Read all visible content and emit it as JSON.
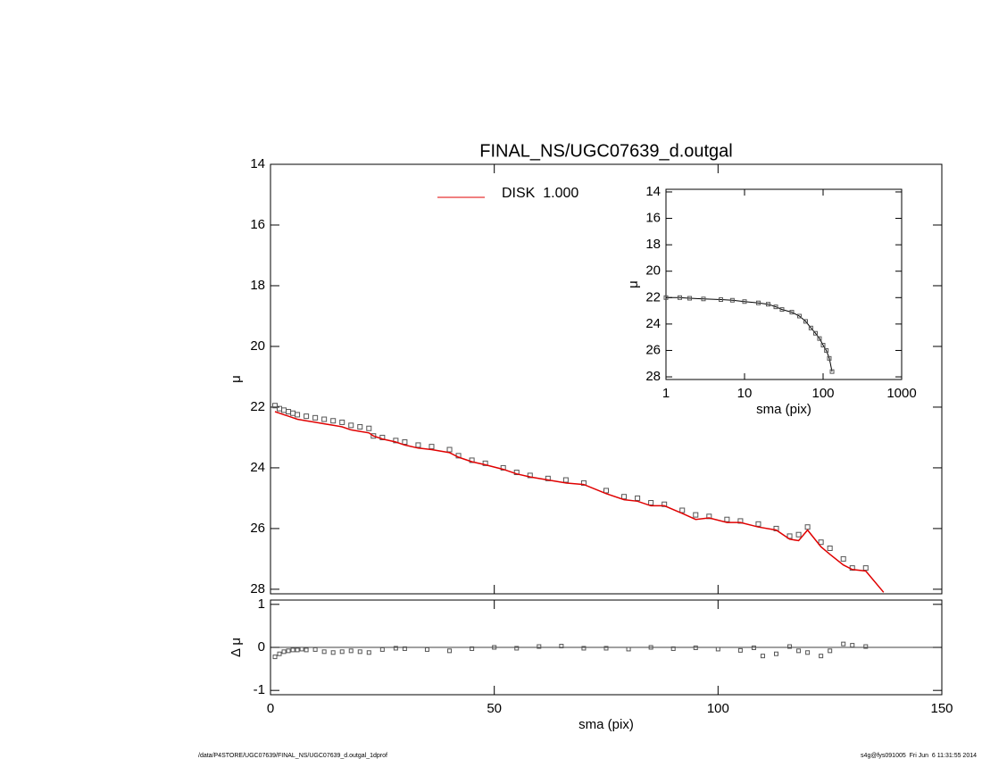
{
  "chart_data": [
    {
      "type": "line",
      "title": "FINAL_NS/UGC07639_d.outgal",
      "ylabel": "μ",
      "x": [
        1,
        2,
        3,
        4,
        5,
        6,
        8,
        10,
        12,
        14,
        16,
        18,
        20,
        22,
        23,
        25,
        28,
        30,
        33,
        36,
        40,
        42,
        45,
        48,
        52,
        55,
        58,
        62,
        66,
        70,
        75,
        79,
        82,
        85,
        88,
        92,
        95,
        98,
        102,
        105,
        109,
        113,
        116,
        118,
        120,
        123,
        125,
        128,
        130,
        133,
        137
      ],
      "series": [
        {
          "color": "#555555",
          "marker": "square",
          "values": [
            21.95,
            22.05,
            22.1,
            22.15,
            22.2,
            22.25,
            22.3,
            22.35,
            22.4,
            22.45,
            22.5,
            22.6,
            22.65,
            22.7,
            22.95,
            23.0,
            23.1,
            23.15,
            23.25,
            23.3,
            23.4,
            23.6,
            23.75,
            23.85,
            24.0,
            24.15,
            24.25,
            24.35,
            24.4,
            24.5,
            24.75,
            24.95,
            25.0,
            25.15,
            25.2,
            25.4,
            25.55,
            25.6,
            25.7,
            25.75,
            25.85,
            26.0,
            26.25,
            26.2,
            25.95,
            26.45,
            26.65,
            27.0,
            27.3,
            27.3,
            null
          ]
        },
        {
          "name": "DISK  1.000",
          "color": "#e00000",
          "values": [
            22.15,
            22.2,
            22.25,
            22.3,
            22.35,
            22.4,
            22.45,
            22.5,
            22.55,
            22.6,
            22.65,
            22.75,
            22.8,
            22.85,
            22.95,
            23.05,
            23.15,
            23.25,
            23.35,
            23.4,
            23.5,
            23.65,
            23.8,
            23.9,
            24.05,
            24.2,
            24.3,
            24.4,
            24.5,
            24.55,
            24.85,
            25.05,
            25.1,
            25.25,
            25.25,
            25.5,
            25.7,
            25.65,
            25.8,
            25.8,
            25.95,
            26.05,
            26.35,
            26.4,
            26.05,
            26.6,
            26.85,
            27.2,
            27.35,
            27.4,
            28.1
          ]
        }
      ],
      "xlim": [
        0,
        150
      ],
      "xticks": [
        0,
        50,
        100,
        150
      ],
      "xtick_labels": false,
      "ylim": [
        28.15,
        14
      ],
      "yticks": [
        14,
        16,
        18,
        20,
        22,
        24,
        26,
        28
      ],
      "legend": "upper left"
    },
    {
      "type": "scatter",
      "xlabel": "sma (pix)",
      "ylabel": "Δ μ",
      "x": [
        1,
        2,
        3,
        4,
        5,
        6,
        7,
        8,
        10,
        12,
        14,
        16,
        18,
        20,
        22,
        25,
        28,
        30,
        35,
        40,
        45,
        50,
        55,
        60,
        65,
        70,
        75,
        80,
        85,
        90,
        95,
        100,
        105,
        108,
        110,
        113,
        116,
        118,
        120,
        123,
        125,
        128,
        130,
        133
      ],
      "values": [
        -0.22,
        -0.15,
        -0.1,
        -0.08,
        -0.06,
        -0.06,
        -0.04,
        -0.06,
        -0.05,
        -0.1,
        -0.12,
        -0.1,
        -0.08,
        -0.1,
        -0.12,
        -0.05,
        -0.02,
        -0.03,
        -0.05,
        -0.08,
        -0.03,
        0.0,
        -0.02,
        0.02,
        0.03,
        -0.02,
        -0.02,
        -0.04,
        0.0,
        -0.03,
        -0.01,
        -0.04,
        -0.07,
        -0.01,
        -0.2,
        -0.15,
        0.02,
        -0.08,
        -0.12,
        -0.2,
        -0.08,
        0.08,
        0.05,
        0.02
      ],
      "color": "#555555",
      "xlim": [
        0,
        150
      ],
      "xticks": [
        0,
        50,
        100,
        150
      ],
      "ylim": [
        -1.1,
        1.1
      ],
      "yticks": [
        -1,
        0,
        1
      ]
    },
    {
      "type": "line",
      "xlabel": "sma (pix)",
      "ylabel": "μ",
      "xscale": "log",
      "x": [
        1,
        1.5,
        2,
        3,
        5,
        7,
        10,
        15,
        20,
        25,
        30,
        40,
        50,
        60,
        70,
        80,
        90,
        100,
        110,
        120,
        130
      ],
      "values": [
        22.0,
        22.0,
        22.05,
        22.1,
        22.15,
        22.2,
        22.3,
        22.4,
        22.5,
        22.7,
        22.9,
        23.1,
        23.4,
        23.8,
        24.3,
        24.7,
        25.1,
        25.6,
        26.0,
        26.6,
        27.6
      ],
      "color": "#555555",
      "xlim": [
        1,
        1000
      ],
      "xticks": [
        1,
        10,
        100,
        1000
      ],
      "ylim": [
        28.2,
        13.8
      ],
      "yticks": [
        14,
        16,
        18,
        20,
        22,
        24,
        26,
        28
      ]
    }
  ],
  "footer": {
    "left": "/data/P4STORE/UGC07639/FINAL_NS/UGC07639_d.outgal_1dprof",
    "right": "s4g@fys091005  Fri Jun  6 11:31:55 2014"
  }
}
